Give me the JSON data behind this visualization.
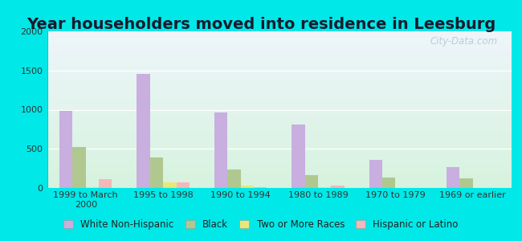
{
  "title": "Year householders moved into residence in Leesburg",
  "categories": [
    "1999 to March\n2000",
    "1995 to 1998",
    "1990 to 1994",
    "1980 to 1989",
    "1970 to 1979",
    "1969 or earlier"
  ],
  "series": {
    "White Non-Hispanic": [
      980,
      1460,
      960,
      810,
      360,
      270
    ],
    "Black": [
      520,
      390,
      240,
      160,
      130,
      120
    ],
    "Two or More Races": [
      10,
      70,
      30,
      10,
      5,
      5
    ],
    "Hispanic or Latino": [
      110,
      70,
      15,
      30,
      5,
      5
    ]
  },
  "colors": {
    "White Non-Hispanic": "#c9aee0",
    "Black": "#b0c890",
    "Two or More Races": "#e8e878",
    "Hispanic or Latino": "#f4b8b8"
  },
  "ylim": [
    0,
    2000
  ],
  "yticks": [
    0,
    500,
    1000,
    1500,
    2000
  ],
  "bar_width": 0.17,
  "background_outer": "#00e8e8",
  "watermark": "City-Data.com",
  "title_fontsize": 14,
  "tick_fontsize": 8,
  "legend_fontsize": 8.5
}
